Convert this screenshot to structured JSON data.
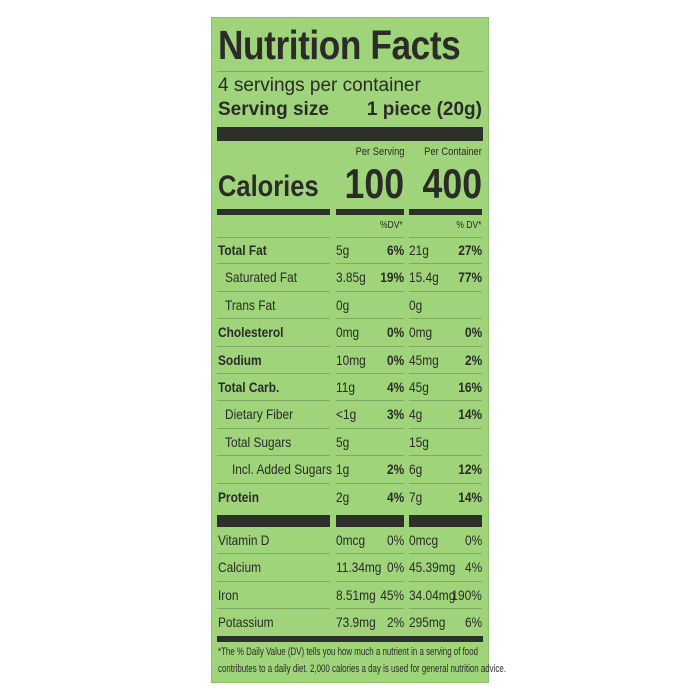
{
  "title": "Nutrition Facts",
  "servings_per_container": "4 servings per container",
  "serving_size_label": "Serving size",
  "serving_size_value": "1 piece (20g)",
  "columns": {
    "per_serving": "Per Serving",
    "per_container": "Per Container"
  },
  "calories": {
    "label": "Calories",
    "per_serving": "100",
    "per_container": "400"
  },
  "dv_headers": {
    "per_serving": "%DV*",
    "per_container": "% DV*"
  },
  "nutrients": [
    {
      "name": "Total Fat",
      "bold": true,
      "indent": 0,
      "serving_amt": "5g",
      "serving_dv": "6%",
      "container_amt": "21g",
      "container_dv": "27%"
    },
    {
      "name": "Saturated Fat",
      "bold": false,
      "indent": 1,
      "serving_amt": "3.85g",
      "serving_dv": "19%",
      "container_amt": "15.4g",
      "container_dv": "77%"
    },
    {
      "name": "Trans Fat",
      "bold": false,
      "indent": 1,
      "serving_amt": "0g",
      "serving_dv": "",
      "container_amt": "0g",
      "container_dv": ""
    },
    {
      "name": "Cholesterol",
      "bold": true,
      "indent": 0,
      "serving_amt": "0mg",
      "serving_dv": "0%",
      "container_amt": "0mg",
      "container_dv": "0%"
    },
    {
      "name": "Sodium",
      "bold": true,
      "indent": 0,
      "serving_amt": "10mg",
      "serving_dv": "0%",
      "container_amt": "45mg",
      "container_dv": "2%"
    },
    {
      "name": "Total Carb.",
      "bold": true,
      "indent": 0,
      "serving_amt": "11g",
      "serving_dv": "4%",
      "container_amt": "45g",
      "container_dv": "16%"
    },
    {
      "name": "Dietary Fiber",
      "bold": false,
      "indent": 1,
      "serving_amt": "<1g",
      "serving_dv": "3%",
      "container_amt": "4g",
      "container_dv": "14%"
    },
    {
      "name": "Total Sugars",
      "bold": false,
      "indent": 1,
      "serving_amt": "5g",
      "serving_dv": "",
      "container_amt": "15g",
      "container_dv": ""
    },
    {
      "name": "Incl. Added Sugars",
      "bold": false,
      "indent": 2,
      "serving_amt": "1g",
      "serving_dv": "2%",
      "container_amt": "6g",
      "container_dv": "12%"
    },
    {
      "name": "Protein",
      "bold": true,
      "indent": 0,
      "serving_amt": "2g",
      "serving_dv": "4%",
      "container_amt": "7g",
      "container_dv": "14%"
    }
  ],
  "vitamins": [
    {
      "name": "Vitamin D",
      "serving_amt": "0mcg",
      "serving_dv": "0%",
      "container_amt": "0mcg",
      "container_dv": "0%"
    },
    {
      "name": "Calcium",
      "serving_amt": "11.34mg",
      "serving_dv": "0%",
      "container_amt": "45.39mg",
      "container_dv": "4%"
    },
    {
      "name": "Iron",
      "serving_amt": "8.51mg",
      "serving_dv": "45%",
      "container_amt": "34.04mg",
      "container_dv": "190%"
    },
    {
      "name": "Potassium",
      "serving_amt": "73.9mg",
      "serving_dv": "2%",
      "container_amt": "295mg",
      "container_dv": "6%"
    }
  ],
  "footnote": {
    "line1": "*The % Daily Value (DV) tells you how much a nutrient in a serving of food",
    "line2": "contributes to a daily diet. 2,000 calories a day is used for general nutrition advice."
  },
  "colors": {
    "background": "#9fd47b",
    "text": "#2b2b28",
    "bars": "#2e312b"
  }
}
